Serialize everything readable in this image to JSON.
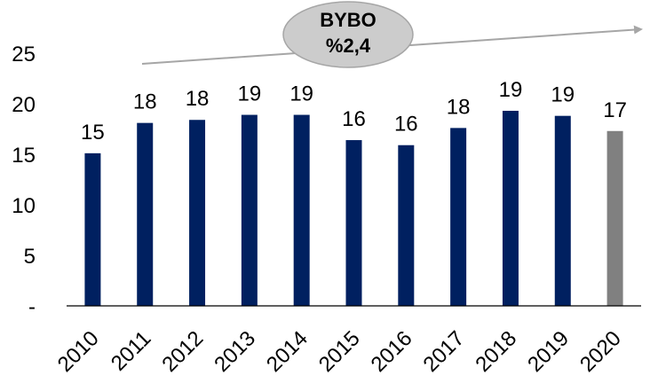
{
  "chart_data": {
    "type": "bar",
    "categories": [
      "2010",
      "2011",
      "2012",
      "2013",
      "2014",
      "2015",
      "2016",
      "2017",
      "2018",
      "2019",
      "2020"
    ],
    "values": [
      15,
      18,
      18,
      19,
      19,
      16,
      16,
      18,
      19,
      19,
      17
    ],
    "plotted_values": [
      15.1,
      18.1,
      18.4,
      18.9,
      18.9,
      16.4,
      15.9,
      17.6,
      19.3,
      18.8,
      17.3
    ],
    "ylim": [
      0,
      25
    ],
    "yticks": [
      "-",
      "5",
      "10",
      "15",
      "20",
      "25"
    ],
    "ytick_values": [
      0,
      5,
      10,
      15,
      20,
      25
    ],
    "grid": false,
    "legend": "none",
    "colors": {
      "bar_default": "#002060",
      "bar_highlight": "#808080",
      "arrow": "#a6a6a6",
      "callout_fill": "#cccccc",
      "callout_stroke": "#a6a6a6",
      "axis": "#000000"
    },
    "highlight_index": 10,
    "annotation": {
      "line1": "BYBO",
      "line2": "%2,4"
    }
  }
}
